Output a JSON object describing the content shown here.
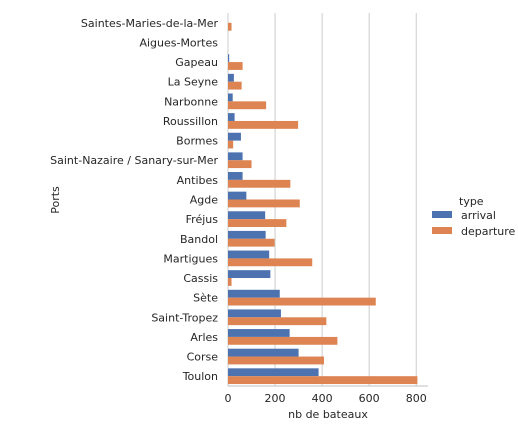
{
  "chart_data": {
    "type": "bar",
    "orientation": "horizontal",
    "title": "",
    "xlabel": "nb de bateaux",
    "ylabel": "Ports",
    "xlim": [
      0,
      850
    ],
    "xticks": [
      0,
      200,
      400,
      600,
      800
    ],
    "grid": "vertical",
    "legend_placement": "right",
    "legend_title": "type",
    "categories": [
      "Saintes-Maries-de-la-Mer",
      "Aigues-Mortes",
      "Gapeau",
      "La Seyne",
      "Narbonne",
      "Roussillon",
      "Bormes",
      "Saint-Nazaire / Sanary-sur-Mer",
      "Antibes",
      "Agde",
      "Fréjus",
      "Bandol",
      "Martigues",
      "Cassis",
      "Sète",
      "Saint-Tropez",
      "Arles",
      "Corse",
      "Toulon"
    ],
    "series": [
      {
        "name": "arrival",
        "color": "#4c72b0",
        "values": [
          0,
          0,
          5,
          25,
          20,
          28,
          55,
          62,
          62,
          78,
          158,
          160,
          175,
          180,
          220,
          225,
          262,
          300,
          385
        ]
      },
      {
        "name": "departure",
        "color": "#dd8452",
        "values": [
          15,
          0,
          62,
          58,
          162,
          298,
          22,
          100,
          265,
          305,
          248,
          198,
          358,
          15,
          628,
          418,
          465,
          408,
          805
        ]
      }
    ]
  }
}
